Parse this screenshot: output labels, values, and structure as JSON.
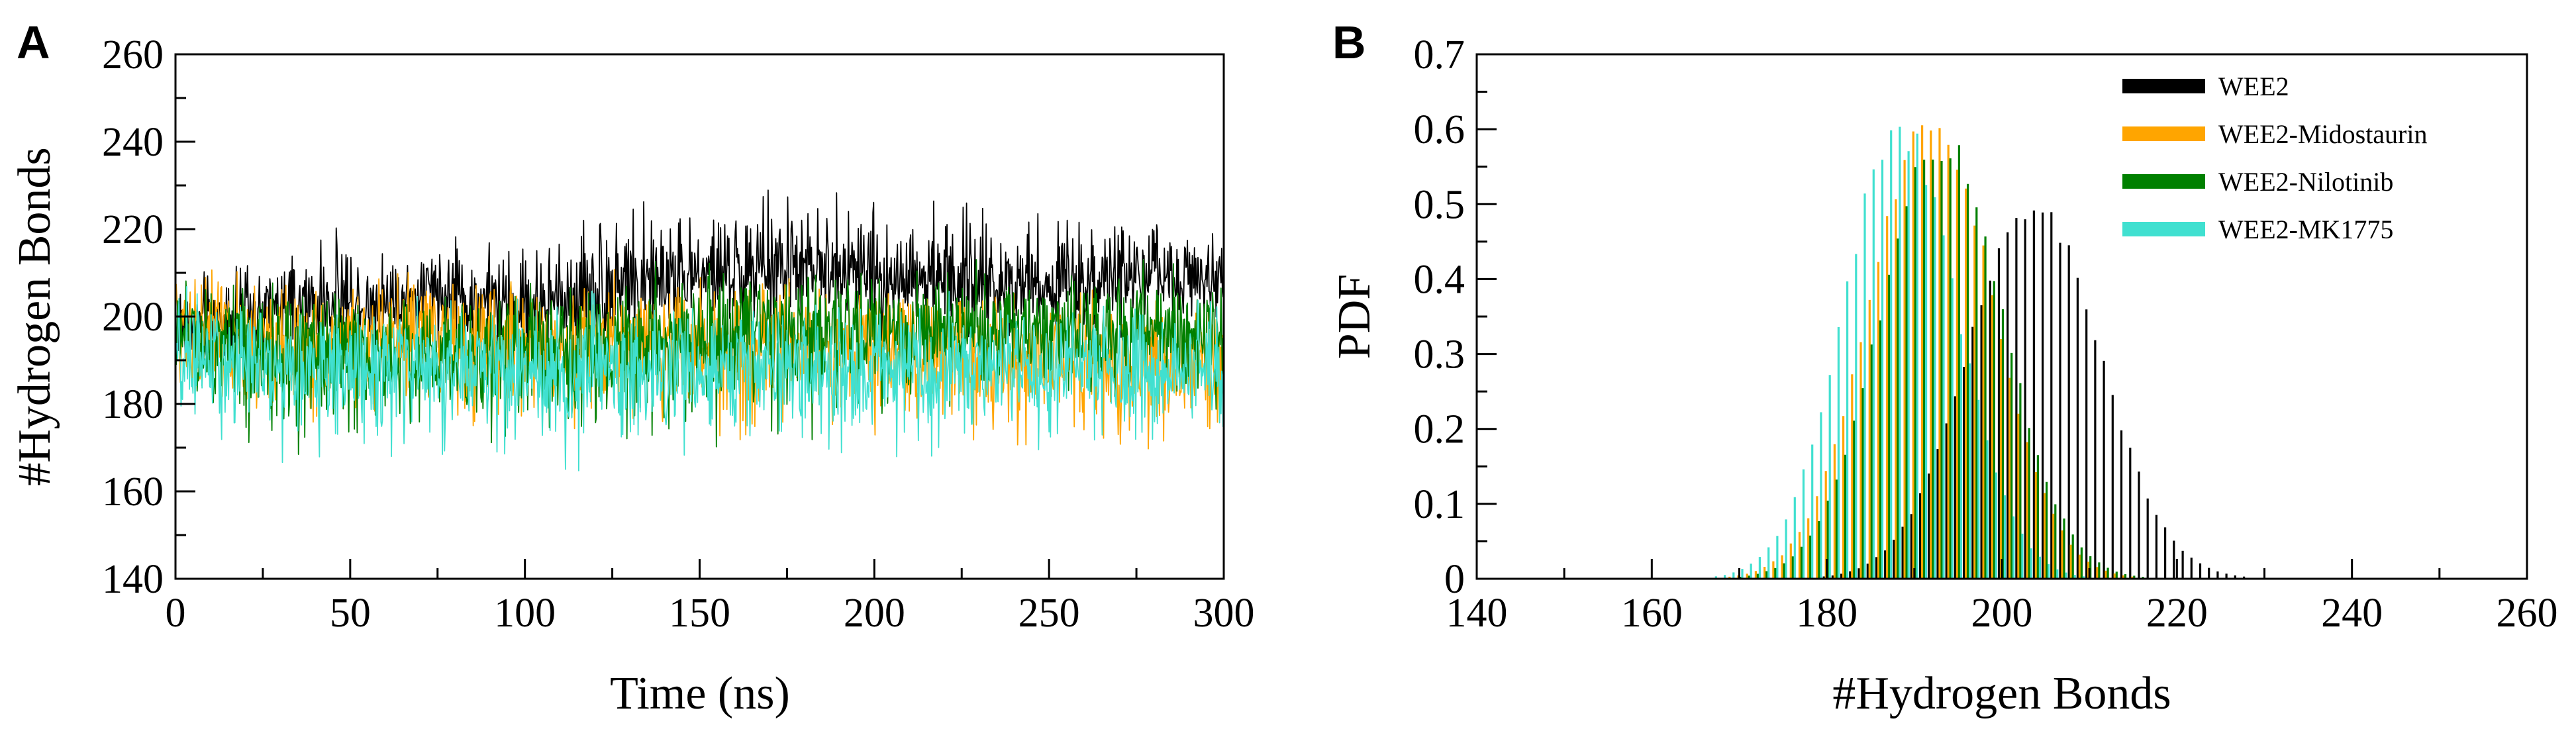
{
  "panels": [
    {
      "letter": "A"
    },
    {
      "letter": "B"
    }
  ],
  "series_colors": {
    "WEE2": "#000000",
    "WEE2-Midostaurin": "#FFA500",
    "WEE2-Nilotinib": "#008000",
    "WEE2-MK1775": "#40E0D0"
  },
  "chart_data": [
    {
      "type": "line",
      "panel": "A",
      "title": "",
      "xlabel": "Time (ns)",
      "ylabel": "#Hydrogen Bonds",
      "xlim": [
        0,
        300
      ],
      "ylim": [
        140,
        260
      ],
      "xticks": [
        0,
        50,
        100,
        150,
        200,
        250,
        300
      ],
      "yticks": [
        140,
        160,
        180,
        200,
        220,
        240,
        260
      ],
      "grid": false,
      "series": [
        {
          "name": "WEE2",
          "x": [
            0,
            25,
            50,
            75,
            100,
            125,
            150,
            175,
            200,
            225,
            250,
            275,
            300
          ],
          "y": [
            198,
            201,
            203,
            204,
            202,
            206,
            209,
            210,
            209,
            208,
            208,
            209,
            210
          ],
          "range_y": [
            [
              184,
              214
            ],
            [
              188,
              214
            ],
            [
              190,
              222
            ],
            [
              190,
              222
            ],
            [
              186,
              220
            ],
            [
              190,
              230
            ],
            [
              194,
              230
            ],
            [
              196,
              232
            ],
            [
              194,
              230
            ],
            [
              192,
              228
            ],
            [
              192,
              226
            ],
            [
              194,
              226
            ],
            [
              196,
              224
            ]
          ]
        },
        {
          "name": "WEE2-Midostaurin",
          "x": [
            0,
            25,
            50,
            75,
            100,
            125,
            150,
            175,
            200,
            225,
            250,
            275,
            300
          ],
          "y": [
            200,
            194,
            195,
            196,
            193,
            195,
            194,
            193,
            192,
            192,
            190,
            189,
            191
          ],
          "range_y": [
            [
              176,
              218
            ],
            [
              168,
              210
            ],
            [
              172,
              212
            ],
            [
              172,
              214
            ],
            [
              170,
              210
            ],
            [
              170,
              212
            ],
            [
              172,
              212
            ],
            [
              170,
              212
            ],
            [
              170,
              212
            ],
            [
              170,
              212
            ],
            [
              168,
              210
            ],
            [
              168,
              206
            ],
            [
              168,
              206
            ]
          ]
        },
        {
          "name": "WEE2-Nilotinib",
          "x": [
            0,
            25,
            50,
            75,
            100,
            125,
            150,
            175,
            200,
            225,
            250,
            275,
            300
          ],
          "y": [
            198,
            191,
            192,
            193,
            192,
            194,
            195,
            197,
            197,
            196,
            196,
            197,
            196
          ],
          "range_y": [
            [
              176,
              214
            ],
            [
              162,
              208
            ],
            [
              170,
              210
            ],
            [
              170,
              210
            ],
            [
              170,
              210
            ],
            [
              164,
              212
            ],
            [
              170,
              214
            ],
            [
              170,
              214
            ],
            [
              176,
              214
            ],
            [
              178,
              214
            ],
            [
              178,
              214
            ],
            [
              178,
              214
            ],
            [
              178,
              212
            ]
          ]
        },
        {
          "name": "WEE2-MK1775",
          "x": [
            0,
            25,
            50,
            75,
            100,
            125,
            150,
            175,
            200,
            225,
            250,
            275,
            300
          ],
          "y": [
            191,
            189,
            188,
            188,
            187,
            188,
            188,
            188,
            188,
            188,
            188,
            188,
            189
          ],
          "range_y": [
            [
              172,
              210
            ],
            [
              164,
              206
            ],
            [
              166,
              206
            ],
            [
              166,
              206
            ],
            [
              162,
              206
            ],
            [
              166,
              206
            ],
            [
              168,
              206
            ],
            [
              168,
              206
            ],
            [
              166,
              206
            ],
            [
              168,
              206
            ],
            [
              166,
              206
            ],
            [
              168,
              206
            ],
            [
              170,
              206
            ]
          ]
        }
      ]
    },
    {
      "type": "bar",
      "panel": "B",
      "title": "",
      "xlabel": "#Hydrogen Bonds",
      "ylabel": "PDF",
      "xlim": [
        140,
        260
      ],
      "ylim": [
        0,
        0.7
      ],
      "xticks": [
        140,
        160,
        180,
        200,
        220,
        240,
        260
      ],
      "yticks": [
        0,
        0.1,
        0.2,
        0.3,
        0.4,
        0.5,
        0.6,
        0.7
      ],
      "ytick_labels": [
        "0",
        "0.1",
        "0.2",
        "0.3",
        "0.4",
        "0.5",
        "0.6",
        "0.7"
      ],
      "grid": false,
      "legend": "top-right",
      "series": [
        {
          "name": "WEE2",
          "center": 204,
          "sigma": 7.5,
          "peak": 0.5
        },
        {
          "name": "WEE2-Midostaurin",
          "center": 192,
          "sigma": 7.0,
          "peak": 0.62
        },
        {
          "name": "WEE2-Nilotinib",
          "center": 193,
          "sigma": 7.0,
          "peak": 0.58
        },
        {
          "name": "WEE2-MK1775",
          "center": 188,
          "sigma": 6.5,
          "peak": 0.6
        }
      ]
    }
  ]
}
